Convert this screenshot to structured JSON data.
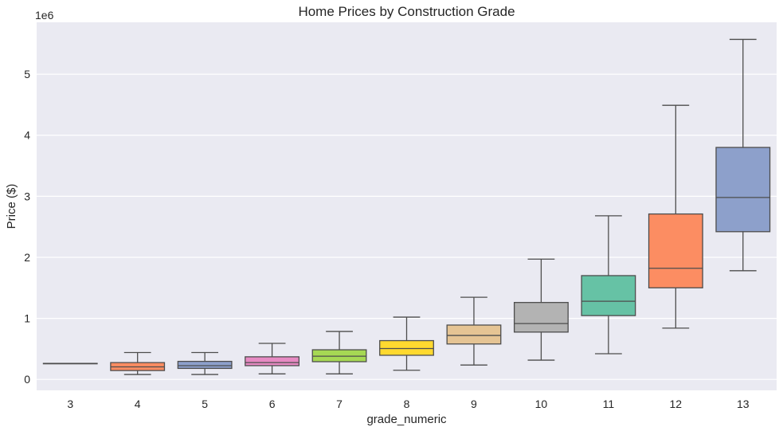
{
  "chart_data": {
    "type": "box",
    "title": "Home Prices by Construction Grade",
    "xlabel": "grade_numeric",
    "ylabel": "Price ($)",
    "y_offset_label": "1e6",
    "ylim": [
      -0.18,
      5.85
    ],
    "yticks": [
      0,
      1,
      2,
      3,
      4,
      5
    ],
    "grid": true,
    "categories": [
      "3",
      "4",
      "5",
      "6",
      "7",
      "8",
      "9",
      "10",
      "11",
      "12",
      "13"
    ],
    "boxes": [
      {
        "grade": "3",
        "whisker_low": 0.262,
        "q1": 0.262,
        "median": 0.262,
        "q3": 0.262,
        "whisker_high": 0.262,
        "color": "#66c2a5"
      },
      {
        "grade": "4",
        "whisker_low": 0.08,
        "q1": 0.145,
        "median": 0.205,
        "q3": 0.275,
        "whisker_high": 0.44,
        "color": "#fc8d62"
      },
      {
        "grade": "5",
        "whisker_low": 0.08,
        "q1": 0.18,
        "median": 0.225,
        "q3": 0.295,
        "whisker_high": 0.44,
        "color": "#8da0cb"
      },
      {
        "grade": "6",
        "whisker_low": 0.09,
        "q1": 0.225,
        "median": 0.275,
        "q3": 0.37,
        "whisker_high": 0.59,
        "color": "#e78ac3"
      },
      {
        "grade": "7",
        "whisker_low": 0.09,
        "q1": 0.29,
        "median": 0.38,
        "q3": 0.485,
        "whisker_high": 0.785,
        "color": "#a6d854"
      },
      {
        "grade": "8",
        "whisker_low": 0.15,
        "q1": 0.395,
        "median": 0.505,
        "q3": 0.635,
        "whisker_high": 1.02,
        "color": "#ffd92f"
      },
      {
        "grade": "9",
        "whisker_low": 0.235,
        "q1": 0.58,
        "median": 0.72,
        "q3": 0.89,
        "whisker_high": 1.345,
        "color": "#e5c494"
      },
      {
        "grade": "10",
        "whisker_low": 0.315,
        "q1": 0.775,
        "median": 0.915,
        "q3": 1.26,
        "whisker_high": 1.97,
        "color": "#b3b3b3"
      },
      {
        "grade": "11",
        "whisker_low": 0.42,
        "q1": 1.045,
        "median": 1.28,
        "q3": 1.7,
        "whisker_high": 2.68,
        "color": "#66c2a5"
      },
      {
        "grade": "12",
        "whisker_low": 0.84,
        "q1": 1.5,
        "median": 1.82,
        "q3": 2.71,
        "whisker_high": 4.49,
        "color": "#fc8d62"
      },
      {
        "grade": "13",
        "whisker_low": 1.78,
        "q1": 2.42,
        "median": 2.98,
        "q3": 3.8,
        "whisker_high": 5.57,
        "color": "#8da0cb"
      }
    ],
    "colors": {
      "plot_background": "#eaeaf2",
      "grid": "#ffffff",
      "box_edge": "#4d4d4d",
      "text": "#262626"
    }
  }
}
